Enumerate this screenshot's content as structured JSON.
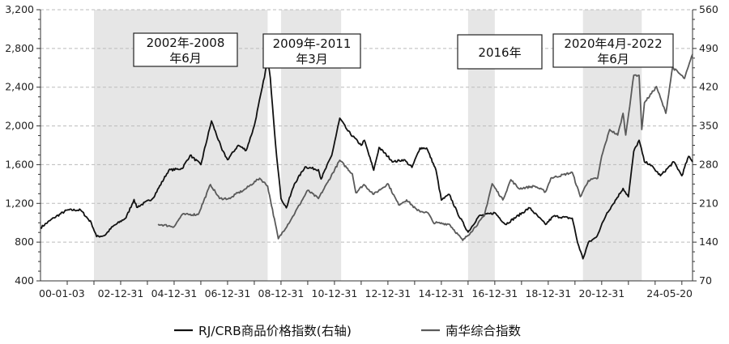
{
  "chart_data": {
    "type": "line",
    "title": "",
    "xlabel": "",
    "ylabel": "",
    "x_range": [
      2000.0,
      2024.4
    ],
    "left_axis": {
      "ylim": [
        400,
        3200
      ],
      "ticks": [
        400,
        800,
        1200,
        1600,
        2000,
        2400,
        2800,
        3200
      ],
      "tick_labels": [
        "400",
        "800",
        "1,200",
        "1,600",
        "2,000",
        "2,400",
        "2,800",
        "3,200"
      ]
    },
    "right_axis": {
      "ylim": [
        70,
        560
      ],
      "ticks": [
        70,
        140,
        210,
        280,
        350,
        420,
        490,
        560
      ],
      "tick_labels": [
        "70",
        "140",
        "210",
        "280",
        "350",
        "420",
        "490",
        "560"
      ]
    },
    "x_ticks": [
      {
        "x": 2000.0,
        "label": "00-01-03"
      },
      {
        "x": 2003.0,
        "label": "02-12-31"
      },
      {
        "x": 2005.0,
        "label": "04-12-31"
      },
      {
        "x": 2007.0,
        "label": "06-12-31"
      },
      {
        "x": 2009.0,
        "label": "08-12-31"
      },
      {
        "x": 2011.0,
        "label": "10-12-31"
      },
      {
        "x": 2013.0,
        "label": "12-12-31"
      },
      {
        "x": 2015.0,
        "label": "14-12-31"
      },
      {
        "x": 2017.0,
        "label": "16-12-31"
      },
      {
        "x": 2019.0,
        "label": "18-12-31"
      },
      {
        "x": 2021.0,
        "label": "20-12-31"
      },
      {
        "x": 2024.4,
        "label": "24-05-20"
      }
    ],
    "grid": "horizontal-dashed",
    "legend_position": "bottom",
    "shaded_periods": [
      {
        "from": 2002.0,
        "to": 2008.5,
        "label_line1": "2002年-2008",
        "label_line2": "年6月"
      },
      {
        "from": 2009.0,
        "to": 2011.25,
        "label_line1": "2009年-2011",
        "label_line2": "年3月"
      },
      {
        "from": 2016.0,
        "to": 2017.0,
        "label_line1": "2016年",
        "label_line2": ""
      },
      {
        "from": 2020.3,
        "to": 2022.5,
        "label_line1": "2020年4月-2022",
        "label_line2": "年6月"
      }
    ],
    "series": [
      {
        "name": "RJ/CRB商品价格指数(右轴)",
        "axis": "right",
        "color": "#111111",
        "x": [
          2000.0,
          2000.5,
          2001.0,
          2001.5,
          2001.9,
          2002.1,
          2002.4,
          2002.7,
          2003.2,
          2003.5,
          2003.6,
          2004.2,
          2004.8,
          2005.3,
          2005.6,
          2006.0,
          2006.4,
          2006.8,
          2007.0,
          2007.4,
          2007.7,
          2008.0,
          2008.3,
          2008.5,
          2008.6,
          2008.8,
          2009.0,
          2009.2,
          2009.5,
          2009.9,
          2010.4,
          2010.5,
          2010.9,
          2011.2,
          2011.5,
          2012.0,
          2012.12,
          2012.47,
          2012.67,
          2013.2,
          2013.6,
          2013.9,
          2014.2,
          2014.45,
          2014.8,
          2015.0,
          2015.3,
          2015.6,
          2016.0,
          2016.4,
          2017.0,
          2017.4,
          2018.3,
          2018.9,
          2019.2,
          2019.9,
          2020.1,
          2020.3,
          2020.5,
          2020.8,
          2021.2,
          2021.4,
          2021.8,
          2022.0,
          2022.2,
          2022.4,
          2022.6,
          2022.8,
          2023.2,
          2023.7,
          2024.0,
          2024.25,
          2024.4
        ],
        "values": [
          166,
          184,
          198,
          198,
          175,
          150,
          152,
          168,
          184,
          217,
          203,
          219,
          270,
          273,
          297,
          280,
          359,
          306,
          289,
          315,
          306,
          350,
          420,
          469,
          437,
          315,
          219,
          202,
          245,
          276,
          271,
          254,
          297,
          364,
          341,
          315,
          324,
          270,
          311,
          285,
          289,
          275,
          310,
          310,
          270,
          216,
          226,
          193,
          158,
          187,
          193,
          172,
          202,
          172,
          187,
          183,
          139,
          110,
          139,
          149,
          193,
          207,
          237,
          222,
          304,
          324,
          285,
          281,
          260,
          285,
          260,
          295,
          285
        ]
      },
      {
        "name": "南华综合指数",
        "axis": "left",
        "color": "#5a5a5a",
        "x": [
          2004.4,
          2005.0,
          2005.3,
          2005.9,
          2006.36,
          2006.7,
          2007.1,
          2007.3,
          2007.6,
          2008.2,
          2008.5,
          2008.9,
          2009.4,
          2010.0,
          2010.4,
          2010.75,
          2011.2,
          2011.67,
          2011.8,
          2012.1,
          2012.47,
          2013.0,
          2013.4,
          2013.7,
          2014.1,
          2014.5,
          2014.7,
          2015.3,
          2015.8,
          2016.1,
          2016.6,
          2016.9,
          2017.3,
          2017.6,
          2017.9,
          2018.5,
          2018.9,
          2019.1,
          2019.9,
          2020.2,
          2020.5,
          2020.85,
          2021.0,
          2021.3,
          2021.6,
          2021.8,
          2021.9,
          2022.2,
          2022.4,
          2022.5,
          2022.6,
          2023.05,
          2023.4,
          2023.65,
          2024.1,
          2024.4
        ],
        "values": [
          985,
          960,
          1085,
          1085,
          1395,
          1250,
          1250,
          1295,
          1335,
          1460,
          1380,
          835,
          1045,
          1335,
          1250,
          1420,
          1645,
          1505,
          1310,
          1395,
          1294,
          1403,
          1186,
          1236,
          1127,
          1102,
          1002,
          985,
          818,
          902,
          1069,
          1403,
          1236,
          1445,
          1353,
          1378,
          1319,
          1461,
          1520,
          1269,
          1436,
          1461,
          1687,
          1963,
          1905,
          2130,
          1905,
          2523,
          2523,
          1963,
          2239,
          2406,
          2130,
          2606,
          2490,
          2740
        ]
      }
    ]
  }
}
